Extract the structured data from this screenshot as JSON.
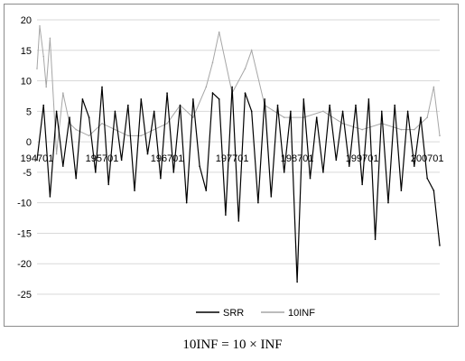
{
  "caption": "10INF = 10 × INF",
  "chart_data": {
    "type": "line",
    "title": "",
    "xlabel": "",
    "ylabel": "",
    "ylim": [
      -25,
      20
    ],
    "yticks": [
      20,
      15,
      10,
      5,
      0,
      -5,
      -10,
      -15,
      -20,
      -25
    ],
    "y_tick_labels": [
      "20",
      "15",
      "10",
      "5",
      "0",
      "-5",
      "-10",
      "-15",
      "-20",
      "-25"
    ],
    "x_range": [
      "1947-01",
      "2008-12"
    ],
    "x_tick_labels": [
      "194701",
      "195701",
      "196701",
      "197701",
      "198701",
      "199701",
      "200701"
    ],
    "x_tick_dates": [
      "1947-01",
      "1957-01",
      "1967-01",
      "1977-01",
      "1987-01",
      "1997-01",
      "2007-01"
    ],
    "grid": "horizontal",
    "legend_position": "bottom",
    "series": [
      {
        "name": "SRR",
        "color": "#000000",
        "x": [
          "1947-01",
          "1948-01",
          "1949-01",
          "1950-01",
          "1951-01",
          "1952-01",
          "1953-01",
          "1954-01",
          "1955-01",
          "1956-01",
          "1957-01",
          "1958-01",
          "1959-01",
          "1960-01",
          "1961-01",
          "1962-01",
          "1963-01",
          "1964-01",
          "1965-01",
          "1966-01",
          "1967-01",
          "1968-01",
          "1969-01",
          "1970-01",
          "1971-01",
          "1972-01",
          "1973-01",
          "1974-01",
          "1975-01",
          "1976-01",
          "1977-01",
          "1978-01",
          "1979-01",
          "1980-01",
          "1981-01",
          "1982-01",
          "1983-01",
          "1984-01",
          "1985-01",
          "1986-01",
          "1987-01",
          "1988-01",
          "1989-01",
          "1990-01",
          "1991-01",
          "1992-01",
          "1993-01",
          "1994-01",
          "1995-01",
          "1996-01",
          "1997-01",
          "1998-01",
          "1999-01",
          "2000-01",
          "2001-01",
          "2002-01",
          "2003-01",
          "2004-01",
          "2005-01",
          "2006-01",
          "2007-01",
          "2008-01",
          "2008-12"
        ],
        "y": [
          -3,
          6,
          -9,
          5,
          -4,
          4,
          -6,
          7,
          4,
          -5,
          9,
          -7,
          5,
          -3,
          6,
          -8,
          7,
          -2,
          5,
          -6,
          8,
          -5,
          6,
          -10,
          7,
          -4,
          -8,
          8,
          7,
          -12,
          9,
          -13,
          8,
          5,
          -10,
          7,
          -9,
          6,
          -5,
          5,
          -23,
          7,
          -6,
          4,
          -5,
          6,
          -3,
          5,
          -4,
          6,
          -7,
          7,
          -16,
          5,
          -10,
          6,
          -8,
          5,
          -4,
          4,
          -6,
          -8,
          -17
        ]
      },
      {
        "name": "10INF",
        "color": "#a6a6a6",
        "x": [
          "1947-01",
          "1947-06",
          "1948-01",
          "1948-06",
          "1949-01",
          "1950-01",
          "1951-01",
          "1952-01",
          "1953-01",
          "1955-01",
          "1957-01",
          "1959-01",
          "1961-01",
          "1963-01",
          "1965-01",
          "1967-01",
          "1969-01",
          "1971-01",
          "1973-01",
          "1974-01",
          "1975-01",
          "1977-01",
          "1979-01",
          "1980-01",
          "1982-01",
          "1985-01",
          "1988-01",
          "1991-01",
          "1994-01",
          "1997-01",
          "2000-01",
          "2003-01",
          "2005-01",
          "2007-01",
          "2008-01",
          "2008-12"
        ],
        "y": [
          12,
          19,
          14,
          9,
          17,
          -2,
          8,
          3,
          2,
          1,
          3,
          2,
          1,
          1,
          2,
          3,
          6,
          4,
          9,
          13,
          18,
          8,
          12,
          15,
          6,
          4,
          4,
          5,
          3,
          2,
          3,
          2,
          2,
          4,
          9,
          1
        ]
      }
    ]
  }
}
